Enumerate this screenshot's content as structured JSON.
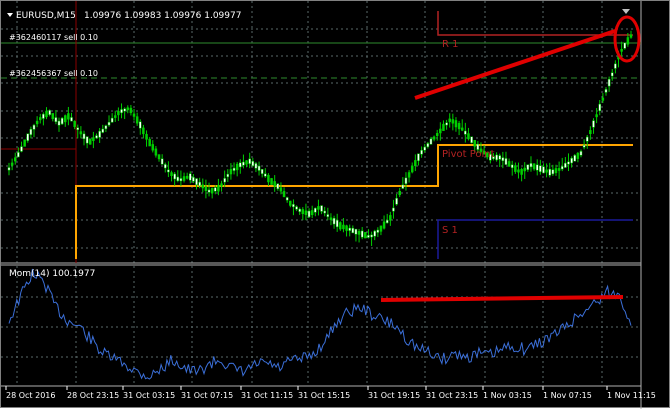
{
  "header": {
    "symbol_label": "EURUSD,M15",
    "ohlc": "1.09976 1.09983 1.09976 1.09977",
    "menu_arrow": "triangle-down-icon"
  },
  "orders": [
    {
      "label": "#362460117 sell 0.10"
    },
    {
      "label": "#362456367 sell 0.10"
    }
  ],
  "pivots": {
    "r1": "R 1",
    "pp": "Pivot Point",
    "s1": "S 1"
  },
  "indicator": {
    "label": "Mom(14) 100.1977"
  },
  "x_ticks": [
    "28 Oct 2016",
    "28 Oct 23:15",
    "31 Oct 03:15",
    "31 Oct 07:15",
    "31 Oct 11:15",
    "31 Oct 15:15",
    "31 Oct 19:15",
    "31 Oct 23:15",
    "1 Nov 03:15",
    "1 Nov 07:15",
    "1 Nov 11:15"
  ],
  "colors": {
    "background": "#000000",
    "candles": "#00d000",
    "momentum": "#3b6fd8",
    "pivot_point": "#ffa500",
    "r1": "#8b0000",
    "s1": "#00008b",
    "annotation": "#e00000",
    "grid": "#5a6a6a",
    "order_line": "#2e8b2e"
  },
  "chart_data": [
    {
      "type": "line",
      "series": [
        {
          "name": "EURUSD,M15",
          "values": [
            1.0963,
            1.0967,
            1.0972,
            1.0976,
            1.0978,
            1.0975,
            1.0977,
            1.0973,
            1.097,
            1.0972,
            1.0975,
            1.0978,
            1.0979,
            1.0975,
            1.097,
            1.0966,
            1.0962,
            1.096,
            1.0961,
            1.0959,
            1.0957,
            1.0958,
            1.0962,
            1.0964,
            1.0965,
            1.0963,
            1.096,
            1.0958,
            1.0954,
            1.0952,
            1.0951,
            1.0953,
            1.095,
            1.0948,
            1.0947,
            1.0946,
            1.0945,
            1.0947,
            1.095,
            1.0957,
            1.0962,
            1.0967,
            1.097,
            1.0973,
            1.0976,
            1.0974,
            1.0971,
            1.0968,
            1.0966,
            1.0966,
            1.0964,
            1.0962,
            1.0964,
            1.0963,
            1.0962,
            1.0963,
            1.0965,
            1.0967,
            1.0973,
            1.098,
            1.0987,
            1.0994,
            1.0998
          ]
        }
      ]
    },
    {
      "type": "line",
      "series": [
        {
          "name": "Mom(14)",
          "values": [
            100.05,
            100.18,
            100.3,
            100.25,
            100.12,
            100.05,
            100.02,
            99.95,
            99.88,
            99.85,
            99.82,
            99.78,
            99.76,
            99.8,
            99.85,
            99.8,
            99.78,
            99.82,
            99.85,
            99.8,
            99.78,
            99.82,
            99.83,
            99.8,
            99.84,
            99.85,
            99.88,
            99.95,
            100.05,
            100.1,
            100.12,
            100.08,
            100.05,
            100.02,
            99.95,
            99.9,
            99.88,
            99.85,
            99.88,
            99.86,
            99.88,
            99.87,
            99.9,
            99.92,
            99.9,
            99.93,
            99.96,
            100.0,
            100.05,
            100.1,
            100.15,
            100.2,
            100.18,
            100.05
          ]
        }
      ]
    }
  ]
}
